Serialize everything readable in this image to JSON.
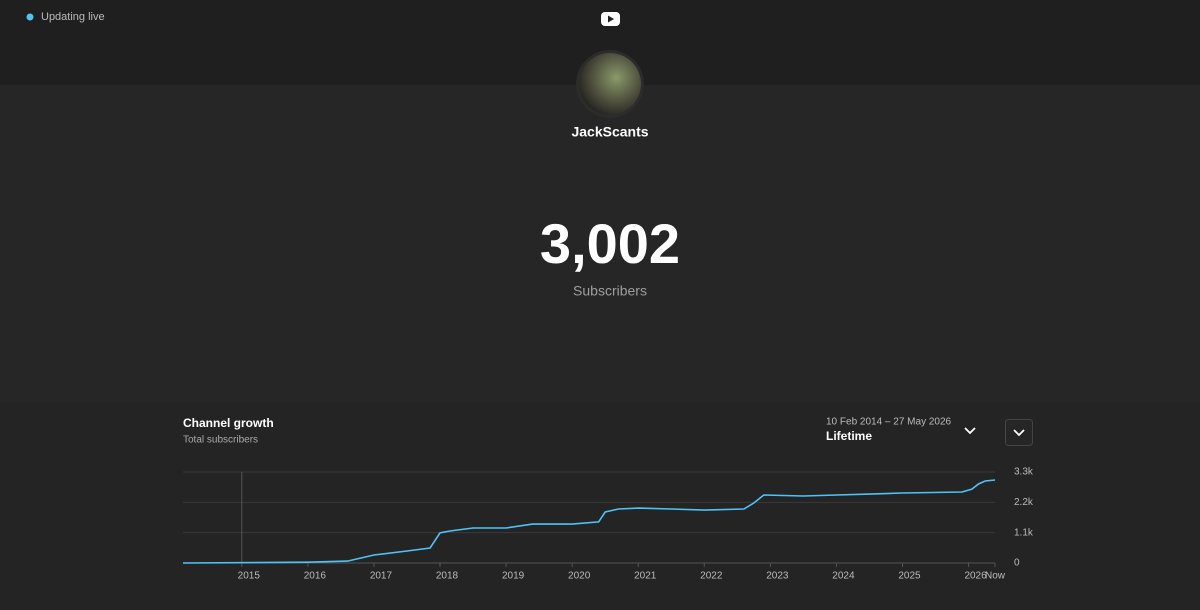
{
  "header": {
    "status": "Updating live"
  },
  "channel": {
    "name": "JackScants",
    "count": "3,002",
    "count_label": "Subscribers"
  },
  "chart_data": {
    "type": "line",
    "title": "Channel growth",
    "subtitle": "Total subscribers",
    "date_range": "10 Feb 2014 – 27 May 2026",
    "period": "Lifetime",
    "x": [
      2014.11,
      2016.0,
      2016.6,
      2017.0,
      2017.5,
      2017.85,
      2018.0,
      2018.15,
      2018.5,
      2019.0,
      2019.4,
      2020.0,
      2020.4,
      2020.5,
      2020.7,
      2021.0,
      2021.5,
      2022.0,
      2022.6,
      2022.75,
      2022.9,
      2023.5,
      2024.0,
      2024.5,
      2025.0,
      2025.9,
      2026.05,
      2026.15,
      2026.25,
      2026.4
    ],
    "series": [
      {
        "name": "Total subscribers",
        "color": "#4fc3f7",
        "values": [
          0,
          30,
          70,
          290,
          435,
          545,
          1090,
          1160,
          1270,
          1270,
          1410,
          1410,
          1490,
          1850,
          1960,
          1990,
          1960,
          1920,
          1960,
          2175,
          2465,
          2430,
          2465,
          2500,
          2540,
          2575,
          2680,
          2865,
          2975,
          3010
        ]
      }
    ],
    "xlim": [
      2014.11,
      2026.4
    ],
    "xticks": [
      2015,
      2016,
      2017,
      2018,
      2019,
      2020,
      2021,
      2022,
      2023,
      2024,
      2025,
      2026,
      {
        "value": 2026.4,
        "label": "Now"
      }
    ],
    "ylim": [
      0,
      3300
    ],
    "yticks": [
      0,
      {
        "value": 1100,
        "label": "1.1k"
      },
      {
        "value": 2200,
        "label": "2.2k"
      },
      {
        "value": 3300,
        "label": "3.3k"
      }
    ],
    "grid": true
  }
}
